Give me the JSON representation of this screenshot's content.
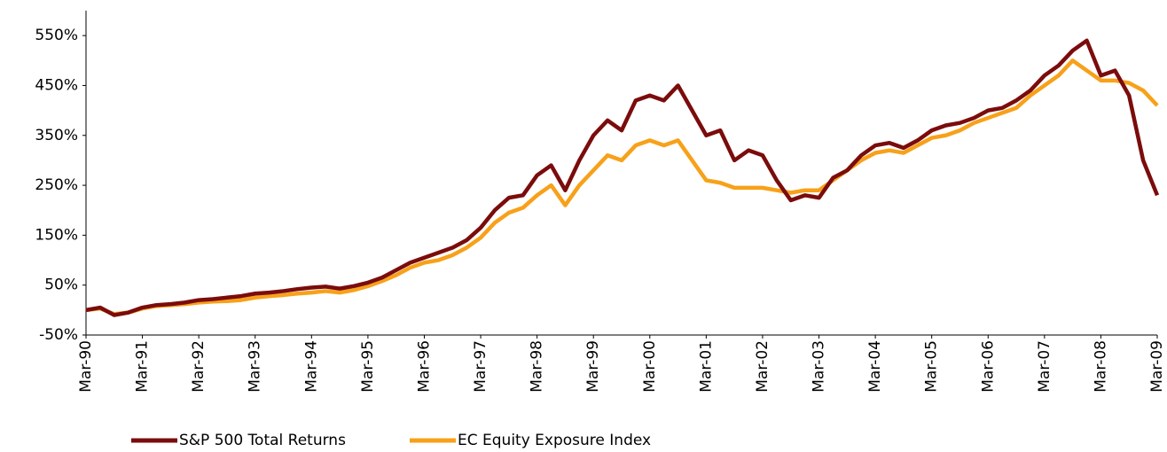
{
  "chart_data": {
    "type": "line",
    "categories": [
      "Mar-90",
      null,
      null,
      null,
      "Mar-91",
      null,
      null,
      null,
      "Mar-92",
      null,
      null,
      null,
      "Mar-93",
      null,
      null,
      null,
      "Mar-94",
      null,
      null,
      null,
      "Mar-95",
      null,
      null,
      null,
      "Mar-96",
      null,
      null,
      null,
      "Mar-97",
      null,
      null,
      null,
      "Mar-98",
      null,
      null,
      null,
      "Mar-99",
      null,
      null,
      null,
      "Mar-00",
      null,
      null,
      null,
      "Mar-01",
      null,
      null,
      null,
      "Mar-02",
      null,
      null,
      null,
      "Mar-03",
      null,
      null,
      null,
      "Mar-04",
      null,
      null,
      null,
      "Mar-05",
      null,
      null,
      null,
      "Mar-06",
      null,
      null,
      null,
      "Mar-07",
      null,
      null,
      null,
      "Mar-08",
      null,
      null,
      null,
      "Mar-09"
    ],
    "series": [
      {
        "name": "S&P 500 Total Returns",
        "color": "#7b0c0c",
        "values": [
          0,
          5,
          -10,
          -5,
          5,
          10,
          12,
          15,
          20,
          22,
          25,
          28,
          33,
          35,
          38,
          42,
          45,
          47,
          43,
          48,
          55,
          65,
          80,
          95,
          105,
          115,
          125,
          140,
          165,
          200,
          225,
          230,
          270,
          290,
          240,
          300,
          350,
          380,
          360,
          420,
          430,
          420,
          450,
          400,
          350,
          360,
          300,
          320,
          310,
          260,
          220,
          230,
          225,
          265,
          280,
          310,
          330,
          335,
          325,
          340,
          360,
          370,
          375,
          385,
          400,
          405,
          420,
          440,
          470,
          490,
          520,
          540,
          470,
          480,
          430,
          300,
          230
        ]
      },
      {
        "name": "EC Equity Exposure Index",
        "color": "#f7a11a",
        "values": [
          0,
          3,
          -8,
          -5,
          3,
          8,
          10,
          12,
          15,
          17,
          18,
          20,
          25,
          28,
          30,
          33,
          35,
          38,
          35,
          40,
          48,
          58,
          70,
          85,
          95,
          100,
          110,
          125,
          145,
          175,
          195,
          205,
          230,
          250,
          210,
          250,
          280,
          310,
          300,
          330,
          340,
          330,
          340,
          300,
          260,
          255,
          245,
          245,
          245,
          240,
          235,
          240,
          240,
          260,
          280,
          300,
          315,
          320,
          315,
          330,
          345,
          350,
          360,
          375,
          385,
          395,
          405,
          430,
          450,
          470,
          500,
          480,
          460,
          460,
          455,
          440,
          410
        ]
      }
    ],
    "ylim": [
      -50,
      600
    ],
    "yticks": [
      {
        "value": -50,
        "label": "-50%"
      },
      {
        "value": 50,
        "label": "50%"
      },
      {
        "value": 150,
        "label": "150%"
      },
      {
        "value": 250,
        "label": "250%"
      },
      {
        "value": 350,
        "label": "350%"
      },
      {
        "value": 450,
        "label": "450%"
      },
      {
        "value": 550,
        "label": "550%"
      }
    ],
    "grid": false
  }
}
